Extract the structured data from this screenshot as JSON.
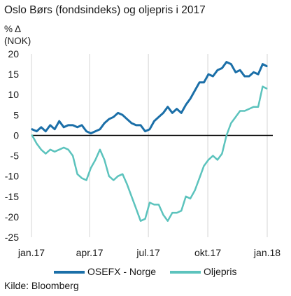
{
  "chart_data": {
    "type": "line",
    "title": "Oslo Børs (fondsindeks) og oljepris i 2017",
    "ylabel_line1": "% Δ",
    "ylabel_line2": "(NOK)",
    "ylim": [
      -25,
      20
    ],
    "yticks": [
      20,
      15,
      10,
      5,
      0,
      -5,
      -10,
      -15,
      -20,
      -25
    ],
    "xlim": [
      "2017-01-01",
      "2018-01-01"
    ],
    "xticks": [
      {
        "label": "jan.17",
        "date": "2017-01-01"
      },
      {
        "label": "apr.17",
        "date": "2017-04-01"
      },
      {
        "label": "jul.17",
        "date": "2017-07-01"
      },
      {
        "label": "okt.17",
        "date": "2017-10-01"
      },
      {
        "label": "jan.18",
        "date": "2018-01-01"
      }
    ],
    "grid": "vertical",
    "legend_position": "bottom",
    "source": "Kilde: Bloomberg",
    "series": [
      {
        "name": "OSEFX - Norge",
        "color": "#1b6fa8",
        "points": [
          [
            "2017-01-02",
            1.5
          ],
          [
            "2017-01-09",
            1.0
          ],
          [
            "2017-01-16",
            2.0
          ],
          [
            "2017-01-23",
            1.0
          ],
          [
            "2017-01-30",
            2.5
          ],
          [
            "2017-02-06",
            1.5
          ],
          [
            "2017-02-13",
            3.5
          ],
          [
            "2017-02-20",
            2.0
          ],
          [
            "2017-02-27",
            2.5
          ],
          [
            "2017-03-06",
            2.5
          ],
          [
            "2017-03-13",
            2.0
          ],
          [
            "2017-03-20",
            2.5
          ],
          [
            "2017-03-27",
            1.0
          ],
          [
            "2017-04-03",
            0.5
          ],
          [
            "2017-04-10",
            1.0
          ],
          [
            "2017-04-17",
            1.5
          ],
          [
            "2017-04-24",
            3.0
          ],
          [
            "2017-05-01",
            4.0
          ],
          [
            "2017-05-08",
            4.5
          ],
          [
            "2017-05-15",
            5.5
          ],
          [
            "2017-05-22",
            5.0
          ],
          [
            "2017-05-29",
            4.0
          ],
          [
            "2017-06-05",
            3.0
          ],
          [
            "2017-06-12",
            2.5
          ],
          [
            "2017-06-19",
            2.5
          ],
          [
            "2017-06-26",
            1.0
          ],
          [
            "2017-07-03",
            1.5
          ],
          [
            "2017-07-10",
            3.5
          ],
          [
            "2017-07-17",
            4.5
          ],
          [
            "2017-07-24",
            5.5
          ],
          [
            "2017-07-31",
            7.0
          ],
          [
            "2017-08-07",
            5.5
          ],
          [
            "2017-08-14",
            6.5
          ],
          [
            "2017-08-21",
            5.5
          ],
          [
            "2017-08-28",
            7.5
          ],
          [
            "2017-09-04",
            9.0
          ],
          [
            "2017-09-11",
            11.0
          ],
          [
            "2017-09-18",
            13.0
          ],
          [
            "2017-09-25",
            13.0
          ],
          [
            "2017-10-02",
            15.0
          ],
          [
            "2017-10-09",
            14.5
          ],
          [
            "2017-10-16",
            16.0
          ],
          [
            "2017-10-23",
            16.5
          ],
          [
            "2017-10-30",
            18.0
          ],
          [
            "2017-11-06",
            17.5
          ],
          [
            "2017-11-13",
            15.5
          ],
          [
            "2017-11-20",
            16.0
          ],
          [
            "2017-11-27",
            14.5
          ],
          [
            "2017-12-04",
            14.5
          ],
          [
            "2017-12-11",
            15.5
          ],
          [
            "2017-12-18",
            15.0
          ],
          [
            "2017-12-25",
            17.5
          ],
          [
            "2017-12-31",
            17.0
          ]
        ]
      },
      {
        "name": "Oljepris",
        "color": "#5cc3bd",
        "points": [
          [
            "2017-01-02",
            0.0
          ],
          [
            "2017-01-09",
            -2.0
          ],
          [
            "2017-01-16",
            -3.5
          ],
          [
            "2017-01-23",
            -4.5
          ],
          [
            "2017-01-30",
            -3.5
          ],
          [
            "2017-02-06",
            -4.0
          ],
          [
            "2017-02-13",
            -3.5
          ],
          [
            "2017-02-20",
            -3.0
          ],
          [
            "2017-02-27",
            -3.5
          ],
          [
            "2017-03-06",
            -5.0
          ],
          [
            "2017-03-13",
            -9.5
          ],
          [
            "2017-03-20",
            -10.5
          ],
          [
            "2017-03-27",
            -11.0
          ],
          [
            "2017-04-03",
            -8.0
          ],
          [
            "2017-04-10",
            -6.0
          ],
          [
            "2017-04-17",
            -3.5
          ],
          [
            "2017-04-24",
            -6.0
          ],
          [
            "2017-05-01",
            -10.0
          ],
          [
            "2017-05-08",
            -11.0
          ],
          [
            "2017-05-15",
            -10.0
          ],
          [
            "2017-05-22",
            -9.5
          ],
          [
            "2017-05-29",
            -12.0
          ],
          [
            "2017-06-05",
            -15.0
          ],
          [
            "2017-06-12",
            -18.0
          ],
          [
            "2017-06-19",
            -21.0
          ],
          [
            "2017-06-26",
            -20.5
          ],
          [
            "2017-07-03",
            -16.5
          ],
          [
            "2017-07-10",
            -17.0
          ],
          [
            "2017-07-17",
            -17.0
          ],
          [
            "2017-07-24",
            -19.5
          ],
          [
            "2017-07-31",
            -21.0
          ],
          [
            "2017-08-07",
            -19.0
          ],
          [
            "2017-08-14",
            -19.0
          ],
          [
            "2017-08-21",
            -18.5
          ],
          [
            "2017-08-28",
            -15.0
          ],
          [
            "2017-09-04",
            -15.5
          ],
          [
            "2017-09-11",
            -13.5
          ],
          [
            "2017-09-18",
            -10.5
          ],
          [
            "2017-09-25",
            -7.5
          ],
          [
            "2017-10-02",
            -6.0
          ],
          [
            "2017-10-09",
            -5.0
          ],
          [
            "2017-10-16",
            -6.0
          ],
          [
            "2017-10-23",
            -4.5
          ],
          [
            "2017-10-30",
            0.0
          ],
          [
            "2017-11-06",
            3.0
          ],
          [
            "2017-11-13",
            4.5
          ],
          [
            "2017-11-20",
            6.0
          ],
          [
            "2017-11-27",
            6.0
          ],
          [
            "2017-12-04",
            6.5
          ],
          [
            "2017-12-11",
            7.0
          ],
          [
            "2017-12-18",
            7.0
          ],
          [
            "2017-12-25",
            12.0
          ],
          [
            "2017-12-31",
            11.5
          ]
        ]
      }
    ]
  }
}
